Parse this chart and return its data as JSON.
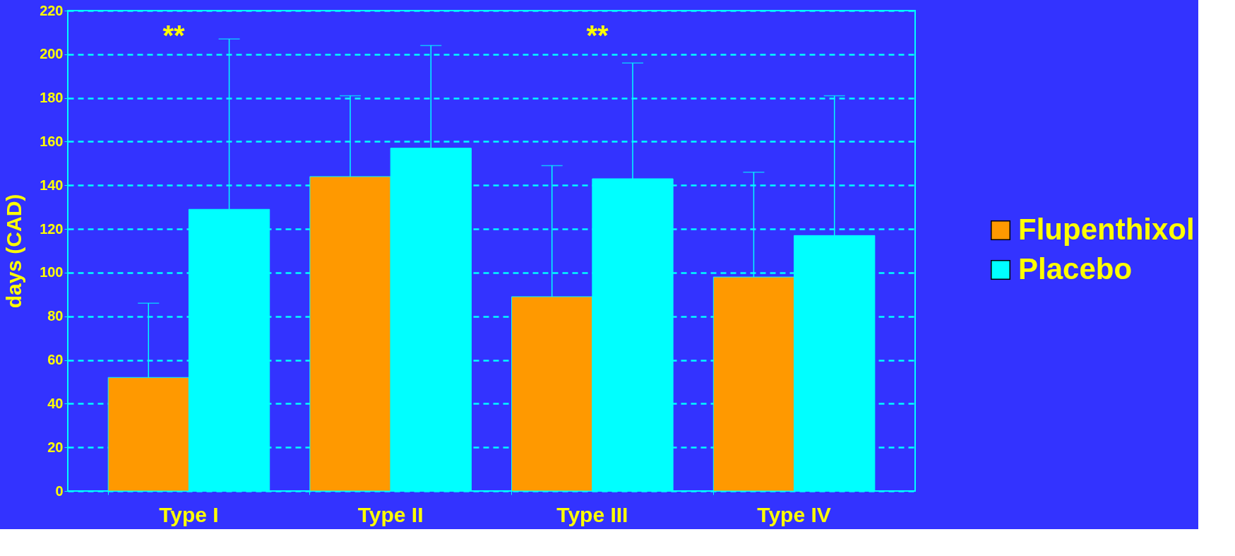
{
  "chart_data": {
    "type": "bar",
    "ylabel": "days (CAD)",
    "categories": [
      "Type I",
      "Type II",
      "Type III",
      "Type IV"
    ],
    "series": [
      {
        "name": "Flupenthixol",
        "color": "#ff9900",
        "values": [
          52,
          144,
          89,
          98
        ],
        "errors": [
          [
            52,
            86
          ],
          [
            144,
            181
          ],
          [
            89,
            149
          ],
          [
            98,
            146
          ]
        ]
      },
      {
        "name": "Placebo",
        "color": "#00ffff",
        "values": [
          129,
          157,
          143,
          117
        ],
        "errors": [
          [
            129,
            207
          ],
          [
            157,
            204
          ],
          [
            143,
            196
          ],
          [
            117,
            181
          ]
        ]
      }
    ],
    "ylim": [
      0,
      220
    ],
    "yticks": [
      0,
      20,
      40,
      60,
      80,
      100,
      120,
      140,
      160,
      180,
      200,
      220
    ],
    "grid": "y",
    "legend": "right",
    "annotations": [
      "**",
      "**"
    ]
  }
}
